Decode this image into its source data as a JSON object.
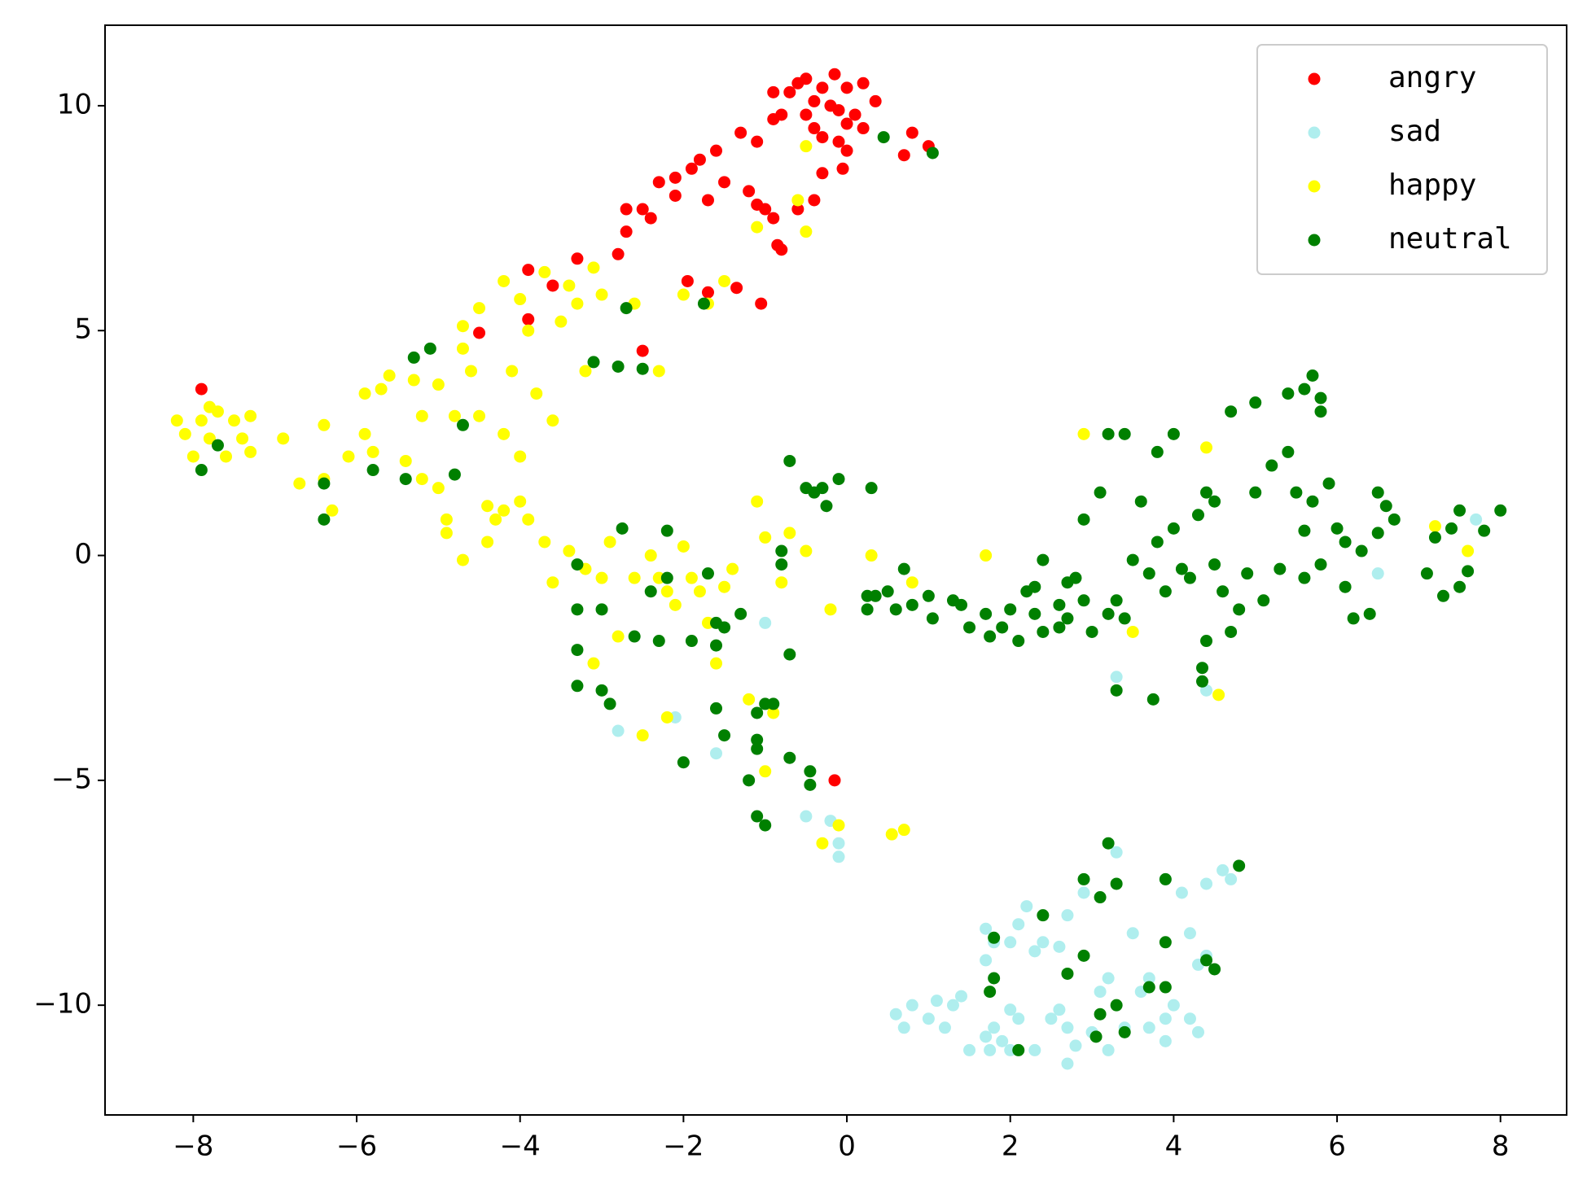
{
  "chart_data": {
    "type": "scatter",
    "xlim": [
      -9.08,
      8.81
    ],
    "ylim": [
      -12.44,
      11.79
    ],
    "xticks": [
      {
        "value": -8,
        "label": "−8"
      },
      {
        "value": -6,
        "label": "−6"
      },
      {
        "value": -4,
        "label": "−4"
      },
      {
        "value": -2,
        "label": "−2"
      },
      0,
      2,
      4,
      6,
      8
    ],
    "yticks": [
      {
        "value": -10,
        "label": "−10"
      },
      {
        "value": -5,
        "label": "−5"
      },
      0,
      5,
      10
    ],
    "grid": false,
    "legend": "upper right",
    "series": [
      {
        "name": "angry",
        "color": "#ff0000",
        "x": [
          -7.9,
          -4.5,
          -3.9,
          -3.9,
          -3.6,
          -3.3,
          -2.8,
          -2.7,
          -2.7,
          -2.5,
          -2.4,
          -2.3,
          -2.1,
          -2.1,
          -1.9,
          -1.8,
          -1.7,
          -1.6,
          -1.5,
          -1.3,
          -1.2,
          -1.1,
          -1.1,
          -1.0,
          -0.9,
          -0.85,
          -0.8,
          -0.9,
          -0.9,
          -0.8,
          -0.7,
          -0.6,
          -0.5,
          -0.5,
          -0.4,
          -0.4,
          -0.3,
          -0.3,
          -0.2,
          -0.15,
          -0.1,
          -0.1,
          0.0,
          0.0,
          0.1,
          0.2,
          0.2,
          0.35,
          -0.6,
          -0.4,
          -0.3,
          -0.05,
          0.0,
          0.7,
          0.8,
          1.0,
          -1.95,
          -1.7,
          -1.35,
          -1.05,
          -2.5,
          -0.15
        ],
        "values": [
          3.7,
          4.95,
          5.25,
          6.35,
          6.0,
          6.6,
          6.7,
          7.2,
          7.7,
          7.7,
          7.5,
          8.3,
          8.0,
          8.4,
          8.6,
          8.8,
          7.9,
          9.0,
          8.3,
          9.4,
          8.1,
          9.2,
          7.8,
          7.7,
          7.5,
          6.9,
          6.8,
          9.7,
          10.3,
          9.8,
          10.3,
          10.5,
          10.6,
          9.8,
          10.1,
          9.5,
          10.4,
          9.3,
          10.0,
          10.7,
          9.9,
          9.2,
          10.4,
          9.6,
          9.8,
          10.5,
          9.5,
          10.1,
          7.7,
          7.9,
          8.5,
          8.6,
          9.0,
          8.9,
          9.4,
          9.1,
          6.1,
          5.85,
          5.95,
          5.6,
          4.55,
          -5.0
        ]
      },
      {
        "name": "sad",
        "color": "#afeeee",
        "x": [
          -2.8,
          -1.6,
          -2.1,
          -1.0,
          -0.5,
          -0.2,
          -0.1,
          -0.1,
          3.3,
          4.4,
          6.5,
          7.7,
          1.7,
          1.8,
          1.7,
          2.0,
          2.1,
          2.2,
          2.3,
          2.4,
          2.6,
          2.7,
          2.9,
          3.2,
          3.3,
          3.5,
          3.7,
          3.9,
          4.1,
          4.3,
          4.4,
          4.6,
          4.7,
          4.2,
          4.4,
          0.6,
          0.7,
          0.8,
          1.0,
          1.1,
          1.2,
          1.3,
          1.4,
          1.5,
          1.7,
          1.8,
          1.9,
          2.0,
          2.1,
          2.3,
          2.5,
          2.6,
          2.7,
          2.7,
          2.8,
          3.0,
          3.1,
          3.2,
          3.4,
          3.6,
          3.9,
          3.9,
          4.0,
          4.2,
          4.3,
          3.7,
          1.75,
          2.0
        ],
        "values": [
          -3.9,
          -4.4,
          -3.6,
          -1.5,
          -5.8,
          -5.9,
          -6.4,
          -6.7,
          -2.7,
          -3.0,
          -0.4,
          0.8,
          -8.3,
          -8.6,
          -9.0,
          -8.6,
          -8.2,
          -7.8,
          -8.8,
          -8.6,
          -8.7,
          -8.0,
          -7.5,
          -9.4,
          -6.6,
          -8.4,
          -9.4,
          -7.2,
          -7.5,
          -9.1,
          -7.3,
          -7.0,
          -7.2,
          -8.4,
          -8.9,
          -10.2,
          -10.5,
          -10.0,
          -10.3,
          -9.9,
          -10.5,
          -10.0,
          -9.8,
          -11.0,
          -10.7,
          -10.5,
          -10.8,
          -10.1,
          -10.3,
          -11.0,
          -10.3,
          -10.1,
          -10.5,
          -11.3,
          -10.9,
          -10.6,
          -9.7,
          -11.0,
          -10.5,
          -9.7,
          -10.3,
          -10.8,
          -10.0,
          -10.3,
          -10.6,
          -10.5,
          -11.0,
          -11.0
        ]
      },
      {
        "name": "happy",
        "color": "#ffff00",
        "x": [
          -8.2,
          -8.1,
          -8.0,
          -7.9,
          -7.8,
          -7.8,
          -7.7,
          -7.6,
          -7.5,
          -7.3,
          -7.3,
          -7.4,
          -6.9,
          -6.7,
          -6.4,
          -6.4,
          -6.3,
          -6.1,
          -5.9,
          -5.9,
          -5.8,
          -5.7,
          -5.6,
          -5.4,
          -5.3,
          -5.2,
          -5.2,
          -5.0,
          -5.0,
          -4.9,
          -4.8,
          -4.7,
          -4.7,
          -4.6,
          -4.5,
          -4.5,
          -4.4,
          -4.3,
          -4.2,
          -4.2,
          -4.1,
          -4.0,
          -4.0,
          -3.9,
          -3.8,
          -3.7,
          -3.6,
          -3.5,
          -3.4,
          -3.3,
          -3.2,
          -3.1,
          -3.0,
          -4.9,
          -4.7,
          -4.4,
          -4.2,
          -4.0,
          -3.9,
          -3.7,
          -3.6,
          -3.4,
          -3.2,
          -3.0,
          -2.9,
          -2.8,
          -2.6,
          -2.4,
          -2.3,
          -2.2,
          -2.1,
          -2.0,
          -1.9,
          -1.8,
          -1.7,
          -1.6,
          -1.5,
          -1.4,
          -1.2,
          -1.1,
          -1.0,
          -0.9,
          -0.8,
          -0.7,
          -0.5,
          -0.2,
          -0.1,
          -0.3,
          0.3,
          0.7,
          0.55,
          -1.0,
          -2.2,
          -2.5,
          -3.1,
          -0.5,
          -0.6,
          -0.5,
          -1.1,
          -1.5,
          -2.0,
          -2.6,
          -2.3,
          -1.7,
          1.7,
          2.9,
          3.5,
          4.4,
          4.55,
          7.2,
          7.6,
          0.8
        ],
        "values": [
          3.0,
          2.7,
          2.2,
          3.0,
          2.6,
          3.3,
          3.2,
          2.2,
          3.0,
          3.1,
          2.3,
          2.6,
          2.6,
          1.6,
          2.9,
          1.7,
          1.0,
          2.2,
          3.6,
          2.7,
          2.3,
          3.7,
          4.0,
          2.1,
          3.9,
          3.1,
          1.7,
          3.8,
          1.5,
          0.5,
          3.1,
          4.6,
          5.1,
          4.1,
          5.5,
          3.1,
          1.1,
          0.8,
          6.1,
          2.7,
          4.1,
          5.7,
          2.2,
          5.0,
          3.6,
          6.3,
          3.0,
          5.2,
          6.0,
          5.6,
          4.1,
          6.4,
          5.8,
          0.8,
          -0.1,
          0.3,
          1.0,
          1.2,
          0.8,
          0.3,
          -0.6,
          0.1,
          -0.3,
          -0.5,
          0.3,
          -1.8,
          -0.5,
          0.0,
          -0.5,
          -0.8,
          -1.1,
          0.2,
          -0.5,
          -0.8,
          -1.5,
          -2.4,
          -0.7,
          -0.3,
          -3.2,
          1.2,
          0.4,
          -3.5,
          -0.6,
          0.5,
          0.1,
          -1.2,
          -6.0,
          -6.4,
          0.0,
          -6.1,
          -6.2,
          -4.8,
          -3.6,
          -4.0,
          -2.4,
          9.1,
          7.9,
          7.2,
          7.3,
          6.1,
          5.8,
          5.6,
          4.1,
          5.6,
          0.0,
          2.7,
          -1.7,
          2.4,
          -3.1,
          0.65,
          0.1,
          -0.6
        ]
      },
      {
        "name": "neutral",
        "color": "#008000",
        "x": [
          -7.9,
          -7.7,
          -6.4,
          -6.4,
          -5.8,
          -5.4,
          -5.3,
          -5.1,
          -4.8,
          -4.7,
          -2.7,
          -2.8,
          -3.1,
          -2.5,
          -1.75,
          0.45,
          1.05,
          -2.75,
          -2.2,
          -2.4,
          -2.2,
          -1.7,
          -1.6,
          -1.5,
          -1.3,
          -3.3,
          -3.3,
          -3.3,
          -3.0,
          -2.6,
          -2.3,
          -1.9,
          -1.6,
          -3.3,
          -3.0,
          -2.9,
          -1.6,
          -1.5,
          -2.0,
          -1.1,
          -1.1,
          -1.1,
          -1.0,
          -0.9,
          -1.2,
          -1.1,
          -1.0,
          -0.7,
          -0.45,
          -0.45,
          -0.7,
          -0.8,
          -0.8,
          -0.7,
          -0.5,
          -0.4,
          -0.3,
          -0.25,
          -0.1,
          0.3,
          0.25,
          0.35,
          0.25,
          0.5,
          0.6,
          0.7,
          0.8,
          1.0,
          1.05,
          1.3,
          1.4,
          1.5,
          1.7,
          1.75,
          1.9,
          2.0,
          2.1,
          2.2,
          2.3,
          2.3,
          2.4,
          2.4,
          2.6,
          2.6,
          2.7,
          2.7,
          2.8,
          2.9,
          2.9,
          3.0,
          3.1,
          3.2,
          3.2,
          3.3,
          3.4,
          3.4,
          3.5,
          3.6,
          3.7,
          3.8,
          3.8,
          3.9,
          4.0,
          4.0,
          4.1,
          4.2,
          4.3,
          4.4,
          4.5,
          4.5,
          4.6,
          4.7,
          4.8,
          4.9,
          5.0,
          5.1,
          5.2,
          5.3,
          5.4,
          5.5,
          5.6,
          5.7,
          5.8,
          5.9,
          6.0,
          6.1,
          6.2,
          6.3,
          6.4,
          6.5,
          6.6,
          6.7,
          4.7,
          5.0,
          5.4,
          5.6,
          5.7,
          5.8,
          5.8,
          5.6,
          6.1,
          6.5,
          7.1,
          7.2,
          7.3,
          7.4,
          7.5,
          7.6,
          7.8,
          7.5,
          8.0,
          3.3,
          3.75,
          4.35,
          4.35,
          4.4,
          3.2,
          3.3,
          2.9,
          3.1,
          3.9,
          4.8,
          2.4,
          1.8,
          2.9,
          3.9,
          4.4,
          1.8,
          1.75,
          2.7,
          3.7,
          4.5,
          3.1,
          3.05,
          3.3,
          3.4,
          2.1,
          3.9
        ],
        "values": [
          1.9,
          2.45,
          1.6,
          0.8,
          1.9,
          1.7,
          4.4,
          4.6,
          1.8,
          2.9,
          5.5,
          4.2,
          4.3,
          4.15,
          5.6,
          9.3,
          8.95,
          0.6,
          0.55,
          -0.8,
          -0.5,
          -0.4,
          -1.5,
          -1.6,
          -1.3,
          -0.2,
          -1.2,
          -2.1,
          -1.2,
          -1.8,
          -1.9,
          -1.9,
          -2.0,
          -2.9,
          -3.0,
          -3.3,
          -3.4,
          -4.0,
          -4.6,
          -4.3,
          -4.1,
          -3.5,
          -3.3,
          -3.3,
          -5.0,
          -5.8,
          -6.0,
          -4.5,
          -4.8,
          -5.1,
          -2.2,
          0.1,
          -0.2,
          2.1,
          1.5,
          1.4,
          1.5,
          1.1,
          1.7,
          1.5,
          -0.9,
          -0.9,
          -1.2,
          -0.8,
          -1.2,
          -0.3,
          -1.1,
          -0.9,
          -1.4,
          -1.0,
          -1.1,
          -1.6,
          -1.3,
          -1.8,
          -1.6,
          -1.2,
          -1.9,
          -0.8,
          -1.3,
          -0.7,
          -1.7,
          -0.1,
          -1.1,
          -1.6,
          -0.6,
          -1.4,
          -0.5,
          -1.0,
          0.8,
          -1.7,
          1.4,
          -1.3,
          2.7,
          -1.0,
          2.7,
          -1.4,
          -0.1,
          1.2,
          -0.4,
          2.3,
          0.3,
          -0.8,
          2.7,
          0.6,
          -0.3,
          -0.5,
          0.9,
          1.4,
          1.2,
          -0.2,
          -0.8,
          -1.7,
          -1.2,
          -0.4,
          1.4,
          -1.0,
          2.0,
          -0.3,
          2.3,
          1.4,
          -0.5,
          1.2,
          -0.2,
          1.6,
          0.6,
          -0.7,
          -1.4,
          0.1,
          -1.3,
          0.5,
          1.1,
          0.8,
          3.2,
          3.4,
          3.6,
          3.7,
          4.0,
          3.5,
          3.2,
          0.55,
          0.3,
          1.4,
          -0.4,
          0.4,
          -0.9,
          0.6,
          -0.7,
          -0.35,
          0.55,
          1.0,
          1.0,
          -3.0,
          -3.2,
          -2.5,
          -2.8,
          -1.9,
          -6.4,
          -7.3,
          -7.2,
          -7.6,
          -7.2,
          -6.9,
          -8.0,
          -8.5,
          -8.9,
          -8.6,
          -9.0,
          -9.4,
          -9.7,
          -9.3,
          -9.6,
          -9.2,
          -10.2,
          -10.7,
          -10.0,
          -10.6,
          -11.0,
          -9.6
        ]
      }
    ]
  }
}
